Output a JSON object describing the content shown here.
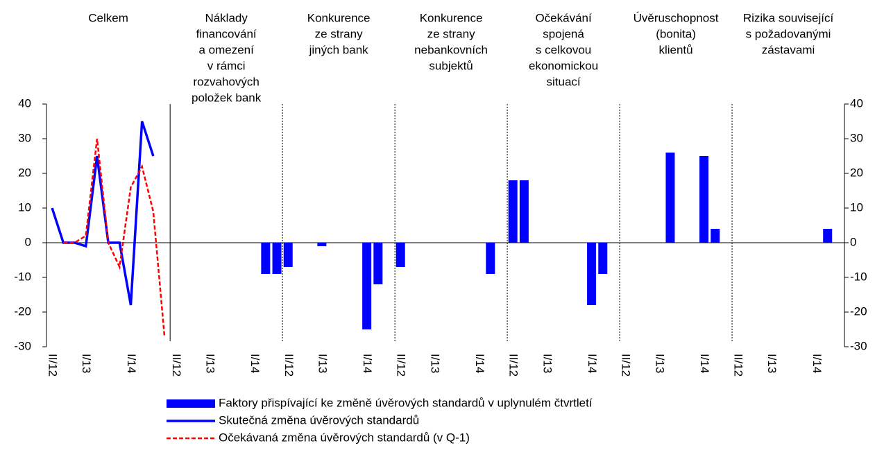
{
  "chart_data": {
    "type": "bar",
    "section_titles": [
      [
        "Celkem"
      ],
      [
        "Náklady",
        "financování",
        "a omezení",
        "v rámci",
        "rozvahových",
        "položek bank"
      ],
      [
        "Konkurence",
        "ze strany",
        "jiných bank"
      ],
      [
        "Konkurence",
        "ze strany",
        "nebankovních",
        "subjektů"
      ],
      [
        "Očekávání",
        "spojená",
        "s celkovou",
        "ekonomickou",
        "situací"
      ],
      [
        "Úvěruschopnost",
        "(bonita)",
        "klientů"
      ],
      [
        "Rizika související",
        "s požadovanými",
        "zástavami"
      ]
    ],
    "categories": [
      "II/12",
      null,
      null,
      "I/13",
      null,
      null,
      null,
      "I/14",
      null,
      null,
      null,
      "II/12",
      null,
      null,
      "I/13",
      null,
      null,
      null,
      "I/14",
      null,
      null,
      "II/12",
      null,
      null,
      "I/13",
      null,
      null,
      null,
      "I/14",
      null,
      null,
      "II/12",
      null,
      null,
      "I/13",
      null,
      null,
      null,
      "I/14",
      null,
      null,
      "II/12",
      null,
      null,
      "I/13",
      null,
      null,
      null,
      "I/14",
      null,
      null,
      "II/12",
      null,
      null,
      "I/13",
      null,
      null,
      null,
      "I/14",
      null,
      null,
      "II/12",
      null,
      null,
      "I/13",
      null,
      null,
      null,
      "I/14",
      null,
      null
    ],
    "series": [
      {
        "name": "Faktory přispívající ke změně úvěrových standardů v uplynulém čtvrtletí",
        "type": "bar",
        "color": "#0000ff",
        "values": [
          null,
          null,
          null,
          null,
          null,
          null,
          null,
          null,
          null,
          null,
          null,
          null,
          null,
          null,
          null,
          null,
          null,
          null,
          null,
          -9,
          -9,
          -7,
          null,
          null,
          -1,
          null,
          null,
          null,
          -25,
          -12,
          null,
          -7,
          null,
          null,
          null,
          null,
          null,
          null,
          null,
          -9,
          null,
          18,
          18,
          null,
          null,
          null,
          null,
          null,
          -18,
          -9,
          null,
          null,
          null,
          null,
          null,
          26,
          null,
          null,
          25,
          4,
          null,
          null,
          null,
          null,
          null,
          null,
          null,
          null,
          null,
          4,
          null
        ]
      },
      {
        "name": "Skutečná změna úvěrových standardů",
        "type": "line",
        "color": "#0000ff",
        "dash": false,
        "values": [
          10,
          0,
          0,
          -1,
          25,
          0,
          0,
          -18,
          35,
          25,
          null,
          null,
          null,
          null,
          null,
          null,
          null,
          null,
          null,
          null,
          null,
          null,
          null,
          null,
          null,
          null,
          null,
          null,
          null,
          null,
          null,
          null,
          null,
          null,
          null,
          null,
          null,
          null,
          null,
          null,
          null,
          null,
          null,
          null,
          null,
          null,
          null,
          null,
          null,
          null,
          null,
          null,
          null,
          null,
          null,
          null,
          null,
          null,
          null,
          null,
          null,
          null,
          null,
          null,
          null,
          null,
          null,
          null,
          null,
          null,
          null
        ]
      },
      {
        "name": "Očekávaná změna úvěrových standardů (v Q-1)",
        "type": "line",
        "color": "#ff0000",
        "dash": true,
        "values": [
          null,
          0,
          0,
          2,
          30,
          0,
          -7,
          16,
          22,
          9,
          -27,
          null,
          null,
          null,
          null,
          null,
          null,
          null,
          null,
          null,
          null,
          null,
          null,
          null,
          null,
          null,
          null,
          null,
          null,
          null,
          null,
          null,
          null,
          null,
          null,
          null,
          null,
          null,
          null,
          null,
          null,
          null,
          null,
          null,
          null,
          null,
          null,
          null,
          null,
          null,
          null,
          null,
          null,
          null,
          null,
          null,
          null,
          null,
          null,
          null,
          null,
          null,
          null,
          null,
          null,
          null,
          null,
          null,
          null,
          null,
          null
        ]
      }
    ],
    "ylim": [
      -30,
      40
    ],
    "yticks": [
      -30,
      -20,
      -10,
      0,
      10,
      20,
      30,
      40
    ],
    "y2lim": [
      -30,
      40
    ],
    "y2ticks": [
      -30,
      -20,
      -10,
      0,
      10,
      20,
      30,
      40
    ]
  }
}
